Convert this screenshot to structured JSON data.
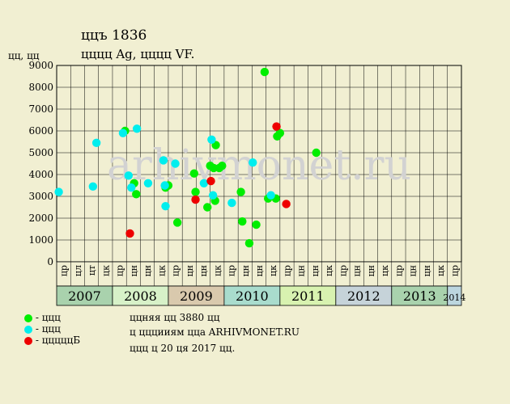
{
  "header": {
    "title": "ццъ 1836",
    "subtitle": "цццц Ag, цццц VF.",
    "y_unit": "цц, цц"
  },
  "watermark": "arhivmonet.ru",
  "chart_data": {
    "type": "scatter",
    "ylim": [
      0,
      9000
    ],
    "yticks": [
      0,
      1000,
      2000,
      3000,
      4000,
      5000,
      6000,
      7000,
      8000,
      9000
    ],
    "grid": true,
    "quarter_labels": [
      "цр",
      "цл",
      "цт",
      "цк",
      "цр",
      "цн",
      "цн",
      "цк",
      "цр",
      "цн",
      "цн",
      "цк",
      "цр",
      "цн",
      "цн",
      "цк",
      "цр",
      "цн",
      "цн",
      "цк",
      "цр",
      "цн",
      "цн",
      "цк",
      "цр",
      "цн",
      "цн",
      "цк",
      "цр"
    ],
    "years": [
      {
        "label": "2007",
        "start": 0,
        "span": 4,
        "color": "#a9d2ad"
      },
      {
        "label": "2008",
        "start": 4,
        "span": 4,
        "color": "#d7f1c8"
      },
      {
        "label": "2009",
        "start": 8,
        "span": 4,
        "color": "#d9c9ad"
      },
      {
        "label": "2010",
        "start": 12,
        "span": 4,
        "color": "#a9dccd"
      },
      {
        "label": "2011",
        "start": 16,
        "span": 4,
        "color": "#d8f2b0"
      },
      {
        "label": "2012",
        "start": 20,
        "span": 4,
        "color": "#c6d3d9"
      },
      {
        "label": "2013",
        "start": 24,
        "span": 4,
        "color": "#a9d2ad"
      },
      {
        "label": "2014",
        "start": 28,
        "span": 1,
        "color": "#bcd6df"
      }
    ],
    "series": [
      {
        "key": "green",
        "color": "#00ee00",
        "points": [
          [
            4.9,
            6000
          ],
          [
            5.55,
            3600
          ],
          [
            5.7,
            3100
          ],
          [
            7.8,
            3400
          ],
          [
            8.0,
            3500
          ],
          [
            8.65,
            1800
          ],
          [
            9.85,
            4050
          ],
          [
            9.95,
            3200
          ],
          [
            10.8,
            2500
          ],
          [
            11.0,
            4400
          ],
          [
            11.25,
            4300
          ],
          [
            11.35,
            2800
          ],
          [
            11.4,
            5350
          ],
          [
            11.65,
            4300
          ],
          [
            11.85,
            4400
          ],
          [
            13.2,
            3200
          ],
          [
            13.3,
            1850
          ],
          [
            13.8,
            850
          ],
          [
            14.3,
            1700
          ],
          [
            14.9,
            8700
          ],
          [
            15.15,
            2900
          ],
          [
            15.7,
            2900
          ],
          [
            15.8,
            5750
          ],
          [
            16.0,
            5900
          ],
          [
            18.6,
            5000
          ]
        ]
      },
      {
        "key": "cyan",
        "color": "#00eeee",
        "points": [
          [
            0.15,
            3200
          ],
          [
            2.6,
            3450
          ],
          [
            2.85,
            5450
          ],
          [
            4.75,
            5900
          ],
          [
            5.15,
            3950
          ],
          [
            5.35,
            3400
          ],
          [
            5.75,
            6100
          ],
          [
            6.55,
            3600
          ],
          [
            7.65,
            4650
          ],
          [
            7.75,
            3500
          ],
          [
            7.8,
            2550
          ],
          [
            8.5,
            4500
          ],
          [
            10.55,
            3600
          ],
          [
            11.1,
            5600
          ],
          [
            11.2,
            3050
          ],
          [
            12.55,
            2700
          ],
          [
            14.05,
            4550
          ],
          [
            15.35,
            3050
          ]
        ]
      },
      {
        "key": "red",
        "color": "#ee0000",
        "points": [
          [
            5.25,
            1300
          ],
          [
            9.95,
            2850
          ],
          [
            11.05,
            3700
          ],
          [
            15.75,
            6200
          ],
          [
            16.45,
            2650
          ]
        ]
      }
    ]
  },
  "legend": {
    "items": [
      {
        "color": "#00ee00",
        "label": "- ццц"
      },
      {
        "color": "#00eeee",
        "label": "- ццц"
      },
      {
        "color": "#ee0000",
        "label": "- цццццБ"
      }
    ],
    "lines": [
      "ццняя цц 3880 цц",
      "ц цццииям цца ARHIVMONET.RU",
      "ццц ц 20 ця 2017 цц."
    ]
  }
}
